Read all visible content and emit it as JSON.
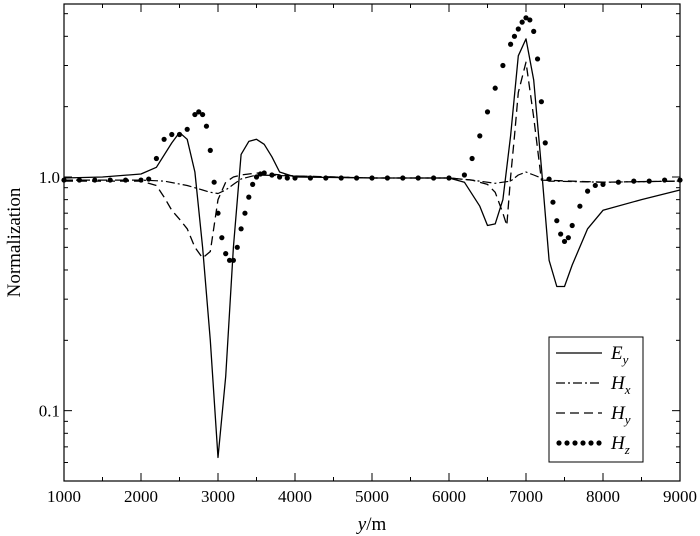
{
  "chart_data": {
    "type": "line",
    "title": "",
    "xlabel": {
      "var": "y",
      "unit": "/m"
    },
    "ylabel": "Normalization",
    "xlim": [
      1000,
      9000
    ],
    "ylim": [
      0.05,
      5.5
    ],
    "yscale": "log",
    "grid": false,
    "legend_position": "bottom-right",
    "x_ticks": [
      1000,
      2000,
      3000,
      4000,
      5000,
      6000,
      7000,
      8000,
      9000
    ],
    "x_tick_labels": [
      "1000",
      "2000",
      "3000",
      "4000",
      "5000",
      "6000",
      "7000",
      "8000",
      "9000"
    ],
    "y_ticks": [
      0.1,
      1.0
    ],
    "y_tick_labels": [
      "0.1",
      "1.0"
    ],
    "series": [
      {
        "name": "E",
        "sub": "y",
        "style": "solid",
        "x": [
          1000,
          1500,
          2000,
          2200,
          2400,
          2500,
          2600,
          2700,
          2800,
          2900,
          3000,
          3100,
          3200,
          3300,
          3400,
          3500,
          3600,
          3700,
          3800,
          4000,
          5000,
          6000,
          6200,
          6400,
          6500,
          6600,
          6700,
          6800,
          6900,
          7000,
          7100,
          7200,
          7300,
          7400,
          7500,
          7600,
          7800,
          8000,
          8500,
          9000
        ],
        "y": [
          0.99,
          1.0,
          1.03,
          1.1,
          1.4,
          1.55,
          1.45,
          1.05,
          0.5,
          0.2,
          0.063,
          0.14,
          0.5,
          1.25,
          1.42,
          1.45,
          1.38,
          1.22,
          1.05,
          1.0,
          0.99,
          0.99,
          0.95,
          0.75,
          0.62,
          0.63,
          0.8,
          1.5,
          3.3,
          3.9,
          2.6,
          1.1,
          0.44,
          0.34,
          0.34,
          0.42,
          0.6,
          0.72,
          0.8,
          0.88
        ]
      },
      {
        "name": "H",
        "sub": "x",
        "style": "dash-dot",
        "x": [
          1000,
          2000,
          2300,
          2600,
          2800,
          2900,
          3000,
          3100,
          3200,
          3300,
          3500,
          4000,
          5000,
          6000,
          6300,
          6600,
          6800,
          6900,
          7000,
          7100,
          7300,
          8000,
          9000
        ],
        "y": [
          0.97,
          0.97,
          0.96,
          0.92,
          0.88,
          0.86,
          0.85,
          0.88,
          0.93,
          0.98,
          1.02,
          1.01,
          0.99,
          0.99,
          0.97,
          0.94,
          0.96,
          1.02,
          1.05,
          1.02,
          0.96,
          0.95,
          0.96
        ]
      },
      {
        "name": "H",
        "sub": "y",
        "style": "dashed",
        "x": [
          1000,
          2000,
          2200,
          2300,
          2400,
          2500,
          2600,
          2700,
          2800,
          2900,
          3000,
          3100,
          3200,
          3300,
          3400,
          3500,
          4000,
          5000,
          6000,
          6300,
          6500,
          6600,
          6700,
          6750,
          6800,
          6850,
          6900,
          7000,
          7100,
          7200,
          8000,
          9000
        ],
        "y": [
          0.96,
          0.96,
          0.92,
          0.82,
          0.72,
          0.66,
          0.6,
          0.5,
          0.45,
          0.48,
          0.8,
          0.95,
          1.0,
          1.02,
          1.03,
          1.04,
          1.01,
          0.99,
          0.99,
          0.97,
          0.93,
          0.86,
          0.7,
          0.62,
          1.0,
          1.5,
          2.3,
          3.1,
          1.8,
          0.97,
          0.95,
          0.96
        ]
      },
      {
        "name": "H",
        "sub": "z",
        "style": "dotted",
        "x": [
          1000,
          1200,
          1400,
          1600,
          1800,
          2000,
          2100,
          2200,
          2300,
          2400,
          2500,
          2600,
          2700,
          2750,
          2800,
          2850,
          2900,
          2950,
          3000,
          3050,
          3100,
          3150,
          3200,
          3250,
          3300,
          3350,
          3400,
          3450,
          3500,
          3550,
          3600,
          3700,
          3800,
          3900,
          4000,
          4200,
          4400,
          4600,
          4800,
          5000,
          5200,
          5400,
          5600,
          5800,
          6000,
          6200,
          6300,
          6400,
          6500,
          6600,
          6700,
          6800,
          6850,
          6900,
          6950,
          7000,
          7050,
          7100,
          7150,
          7200,
          7250,
          7300,
          7350,
          7400,
          7450,
          7500,
          7550,
          7600,
          7700,
          7800,
          7900,
          8000,
          8200,
          8400,
          8600,
          8800,
          9000
        ],
        "y": [
          0.97,
          0.97,
          0.97,
          0.97,
          0.97,
          0.97,
          0.98,
          1.2,
          1.45,
          1.52,
          1.52,
          1.6,
          1.85,
          1.9,
          1.85,
          1.65,
          1.3,
          0.95,
          0.7,
          0.55,
          0.47,
          0.44,
          0.44,
          0.5,
          0.6,
          0.7,
          0.82,
          0.93,
          1.0,
          1.03,
          1.04,
          1.02,
          1.0,
          0.99,
          0.99,
          0.99,
          0.99,
          0.99,
          0.99,
          0.99,
          0.99,
          0.99,
          0.99,
          0.99,
          0.99,
          1.02,
          1.2,
          1.5,
          1.9,
          2.4,
          3.0,
          3.7,
          4.0,
          4.3,
          4.6,
          4.8,
          4.7,
          4.2,
          3.2,
          2.1,
          1.4,
          0.98,
          0.78,
          0.65,
          0.57,
          0.53,
          0.55,
          0.62,
          0.75,
          0.87,
          0.92,
          0.93,
          0.95,
          0.96,
          0.96,
          0.97,
          0.97
        ]
      }
    ]
  }
}
